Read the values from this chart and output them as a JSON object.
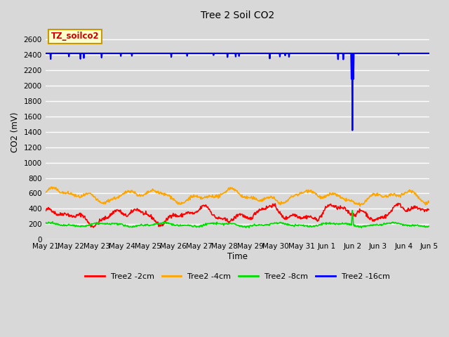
{
  "title": "Tree 2 Soil CO2",
  "ylabel": "CO2 (mV)",
  "xlabel": "Time",
  "ylim": [
    0,
    2800
  ],
  "yticks": [
    0,
    200,
    400,
    600,
    800,
    1000,
    1200,
    1400,
    1600,
    1800,
    2000,
    2200,
    2400,
    2600
  ],
  "bg_color": "#d8d8d8",
  "plot_bg_color": "#d8d8d8",
  "legend_label": "TZ_soilco2",
  "legend_bg": "#ffffcc",
  "legend_edge": "#cc9900",
  "series": {
    "2cm": {
      "color": "#ff0000",
      "label": "Tree2 -2cm"
    },
    "4cm": {
      "color": "#ffa500",
      "label": "Tree2 -4cm"
    },
    "8cm": {
      "color": "#00dd00",
      "label": "Tree2 -8cm"
    },
    "16cm": {
      "color": "#0000ff",
      "label": "Tree2 -16cm"
    }
  },
  "x_tick_labels": [
    "May 21",
    "May 22",
    "May 23",
    "May 24",
    "May 25",
    "May 26",
    "May 27",
    "May 28",
    "May 29",
    "May 30",
    "May 31",
    "Jun 1",
    "Jun 2",
    "Jun 3",
    "Jun 4",
    "Jun 5"
  ]
}
